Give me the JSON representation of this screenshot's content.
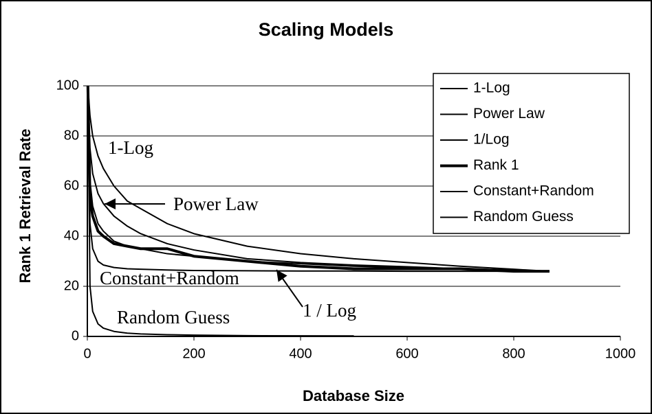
{
  "chart_data": {
    "type": "line",
    "title": "Scaling Models",
    "x_label": "Database Size",
    "y_label": "Rank 1 Retrieval Rate",
    "x": [
      1,
      5,
      10,
      20,
      30,
      50,
      75,
      100,
      150,
      200,
      300,
      400,
      500,
      600,
      700,
      800,
      867
    ],
    "series": [
      {
        "name": "1-Log",
        "color": "#000000",
        "line_width": 2,
        "values": [
          100,
          88,
          80,
          72,
          67,
          60,
          54,
          51,
          45,
          41,
          36,
          33,
          31,
          29.5,
          28,
          26.8,
          26
        ]
      },
      {
        "name": "Power Law",
        "color": "#000000",
        "line_width": 2,
        "values": [
          100,
          75,
          65,
          57,
          53,
          48,
          44,
          41,
          37,
          34.5,
          31,
          29.5,
          28.5,
          27.8,
          27,
          26.5,
          26
        ]
      },
      {
        "name": "1/Log",
        "color": "#000000",
        "line_width": 2,
        "values": [
          100,
          62,
          52,
          45,
          42,
          38,
          36,
          35,
          33,
          32,
          30,
          29,
          28,
          27.5,
          27,
          26.4,
          26
        ]
      },
      {
        "name": "Rank 1",
        "color": "#000000",
        "line_width": 4,
        "values": [
          100,
          55,
          48,
          42,
          40,
          37,
          36,
          35,
          35,
          32,
          30,
          28,
          27,
          27,
          27,
          26,
          26
        ]
      },
      {
        "name": "Constant+Random",
        "color": "#000000",
        "line_width": 2,
        "values": [
          100,
          45,
          35,
          30,
          28.5,
          27.5,
          27,
          26.8,
          26.5,
          26.3,
          26.2,
          26.1,
          26.1,
          26,
          26,
          26,
          26
        ]
      },
      {
        "name": "Random Guess",
        "color": "#000000",
        "line_width": 2,
        "values": [
          100,
          20,
          10,
          5,
          3.3,
          2,
          1.3,
          1,
          0.7,
          0.5,
          0.3,
          0.25,
          0.2,
          null,
          null,
          null,
          null
        ]
      }
    ],
    "annotations": [
      {
        "text": "1-Log"
      },
      {
        "text": "Power Law"
      },
      {
        "text": "Constant+Random"
      },
      {
        "text": "1 / Log"
      },
      {
        "text": "Random Guess"
      }
    ],
    "xlim": [
      0,
      1000
    ],
    "xticks": [
      0,
      200,
      400,
      600,
      800,
      1000
    ],
    "ylim": [
      0,
      100
    ],
    "yticks": [
      0,
      20,
      40,
      60,
      80,
      100
    ],
    "grid": true,
    "legend": "upper right"
  }
}
